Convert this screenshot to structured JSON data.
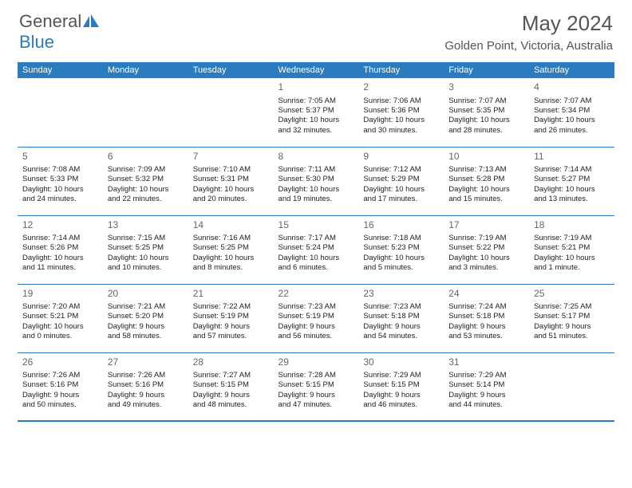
{
  "logo": {
    "text_general": "General",
    "text_blue": "Blue"
  },
  "header": {
    "month_title": "May 2024",
    "location": "Golden Point, Victoria, Australia"
  },
  "colors": {
    "header_bg": "#2b7bbf",
    "header_text": "#ffffff",
    "text": "#333333",
    "border": "#2b7bbf"
  },
  "day_names": [
    "Sunday",
    "Monday",
    "Tuesday",
    "Wednesday",
    "Thursday",
    "Friday",
    "Saturday"
  ],
  "weeks": [
    [
      {
        "day": "",
        "sunrise": "",
        "sunset": "",
        "daylight1": "",
        "daylight2": ""
      },
      {
        "day": "",
        "sunrise": "",
        "sunset": "",
        "daylight1": "",
        "daylight2": ""
      },
      {
        "day": "",
        "sunrise": "",
        "sunset": "",
        "daylight1": "",
        "daylight2": ""
      },
      {
        "day": "1",
        "sunrise": "Sunrise: 7:05 AM",
        "sunset": "Sunset: 5:37 PM",
        "daylight1": "Daylight: 10 hours",
        "daylight2": "and 32 minutes."
      },
      {
        "day": "2",
        "sunrise": "Sunrise: 7:06 AM",
        "sunset": "Sunset: 5:36 PM",
        "daylight1": "Daylight: 10 hours",
        "daylight2": "and 30 minutes."
      },
      {
        "day": "3",
        "sunrise": "Sunrise: 7:07 AM",
        "sunset": "Sunset: 5:35 PM",
        "daylight1": "Daylight: 10 hours",
        "daylight2": "and 28 minutes."
      },
      {
        "day": "4",
        "sunrise": "Sunrise: 7:07 AM",
        "sunset": "Sunset: 5:34 PM",
        "daylight1": "Daylight: 10 hours",
        "daylight2": "and 26 minutes."
      }
    ],
    [
      {
        "day": "5",
        "sunrise": "Sunrise: 7:08 AM",
        "sunset": "Sunset: 5:33 PM",
        "daylight1": "Daylight: 10 hours",
        "daylight2": "and 24 minutes."
      },
      {
        "day": "6",
        "sunrise": "Sunrise: 7:09 AM",
        "sunset": "Sunset: 5:32 PM",
        "daylight1": "Daylight: 10 hours",
        "daylight2": "and 22 minutes."
      },
      {
        "day": "7",
        "sunrise": "Sunrise: 7:10 AM",
        "sunset": "Sunset: 5:31 PM",
        "daylight1": "Daylight: 10 hours",
        "daylight2": "and 20 minutes."
      },
      {
        "day": "8",
        "sunrise": "Sunrise: 7:11 AM",
        "sunset": "Sunset: 5:30 PM",
        "daylight1": "Daylight: 10 hours",
        "daylight2": "and 19 minutes."
      },
      {
        "day": "9",
        "sunrise": "Sunrise: 7:12 AM",
        "sunset": "Sunset: 5:29 PM",
        "daylight1": "Daylight: 10 hours",
        "daylight2": "and 17 minutes."
      },
      {
        "day": "10",
        "sunrise": "Sunrise: 7:13 AM",
        "sunset": "Sunset: 5:28 PM",
        "daylight1": "Daylight: 10 hours",
        "daylight2": "and 15 minutes."
      },
      {
        "day": "11",
        "sunrise": "Sunrise: 7:14 AM",
        "sunset": "Sunset: 5:27 PM",
        "daylight1": "Daylight: 10 hours",
        "daylight2": "and 13 minutes."
      }
    ],
    [
      {
        "day": "12",
        "sunrise": "Sunrise: 7:14 AM",
        "sunset": "Sunset: 5:26 PM",
        "daylight1": "Daylight: 10 hours",
        "daylight2": "and 11 minutes."
      },
      {
        "day": "13",
        "sunrise": "Sunrise: 7:15 AM",
        "sunset": "Sunset: 5:25 PM",
        "daylight1": "Daylight: 10 hours",
        "daylight2": "and 10 minutes."
      },
      {
        "day": "14",
        "sunrise": "Sunrise: 7:16 AM",
        "sunset": "Sunset: 5:25 PM",
        "daylight1": "Daylight: 10 hours",
        "daylight2": "and 8 minutes."
      },
      {
        "day": "15",
        "sunrise": "Sunrise: 7:17 AM",
        "sunset": "Sunset: 5:24 PM",
        "daylight1": "Daylight: 10 hours",
        "daylight2": "and 6 minutes."
      },
      {
        "day": "16",
        "sunrise": "Sunrise: 7:18 AM",
        "sunset": "Sunset: 5:23 PM",
        "daylight1": "Daylight: 10 hours",
        "daylight2": "and 5 minutes."
      },
      {
        "day": "17",
        "sunrise": "Sunrise: 7:19 AM",
        "sunset": "Sunset: 5:22 PM",
        "daylight1": "Daylight: 10 hours",
        "daylight2": "and 3 minutes."
      },
      {
        "day": "18",
        "sunrise": "Sunrise: 7:19 AM",
        "sunset": "Sunset: 5:21 PM",
        "daylight1": "Daylight: 10 hours",
        "daylight2": "and 1 minute."
      }
    ],
    [
      {
        "day": "19",
        "sunrise": "Sunrise: 7:20 AM",
        "sunset": "Sunset: 5:21 PM",
        "daylight1": "Daylight: 10 hours",
        "daylight2": "and 0 minutes."
      },
      {
        "day": "20",
        "sunrise": "Sunrise: 7:21 AM",
        "sunset": "Sunset: 5:20 PM",
        "daylight1": "Daylight: 9 hours",
        "daylight2": "and 58 minutes."
      },
      {
        "day": "21",
        "sunrise": "Sunrise: 7:22 AM",
        "sunset": "Sunset: 5:19 PM",
        "daylight1": "Daylight: 9 hours",
        "daylight2": "and 57 minutes."
      },
      {
        "day": "22",
        "sunrise": "Sunrise: 7:23 AM",
        "sunset": "Sunset: 5:19 PM",
        "daylight1": "Daylight: 9 hours",
        "daylight2": "and 56 minutes."
      },
      {
        "day": "23",
        "sunrise": "Sunrise: 7:23 AM",
        "sunset": "Sunset: 5:18 PM",
        "daylight1": "Daylight: 9 hours",
        "daylight2": "and 54 minutes."
      },
      {
        "day": "24",
        "sunrise": "Sunrise: 7:24 AM",
        "sunset": "Sunset: 5:18 PM",
        "daylight1": "Daylight: 9 hours",
        "daylight2": "and 53 minutes."
      },
      {
        "day": "25",
        "sunrise": "Sunrise: 7:25 AM",
        "sunset": "Sunset: 5:17 PM",
        "daylight1": "Daylight: 9 hours",
        "daylight2": "and 51 minutes."
      }
    ],
    [
      {
        "day": "26",
        "sunrise": "Sunrise: 7:26 AM",
        "sunset": "Sunset: 5:16 PM",
        "daylight1": "Daylight: 9 hours",
        "daylight2": "and 50 minutes."
      },
      {
        "day": "27",
        "sunrise": "Sunrise: 7:26 AM",
        "sunset": "Sunset: 5:16 PM",
        "daylight1": "Daylight: 9 hours",
        "daylight2": "and 49 minutes."
      },
      {
        "day": "28",
        "sunrise": "Sunrise: 7:27 AM",
        "sunset": "Sunset: 5:15 PM",
        "daylight1": "Daylight: 9 hours",
        "daylight2": "and 48 minutes."
      },
      {
        "day": "29",
        "sunrise": "Sunrise: 7:28 AM",
        "sunset": "Sunset: 5:15 PM",
        "daylight1": "Daylight: 9 hours",
        "daylight2": "and 47 minutes."
      },
      {
        "day": "30",
        "sunrise": "Sunrise: 7:29 AM",
        "sunset": "Sunset: 5:15 PM",
        "daylight1": "Daylight: 9 hours",
        "daylight2": "and 46 minutes."
      },
      {
        "day": "31",
        "sunrise": "Sunrise: 7:29 AM",
        "sunset": "Sunset: 5:14 PM",
        "daylight1": "Daylight: 9 hours",
        "daylight2": "and 44 minutes."
      },
      {
        "day": "",
        "sunrise": "",
        "sunset": "",
        "daylight1": "",
        "daylight2": ""
      }
    ]
  ]
}
